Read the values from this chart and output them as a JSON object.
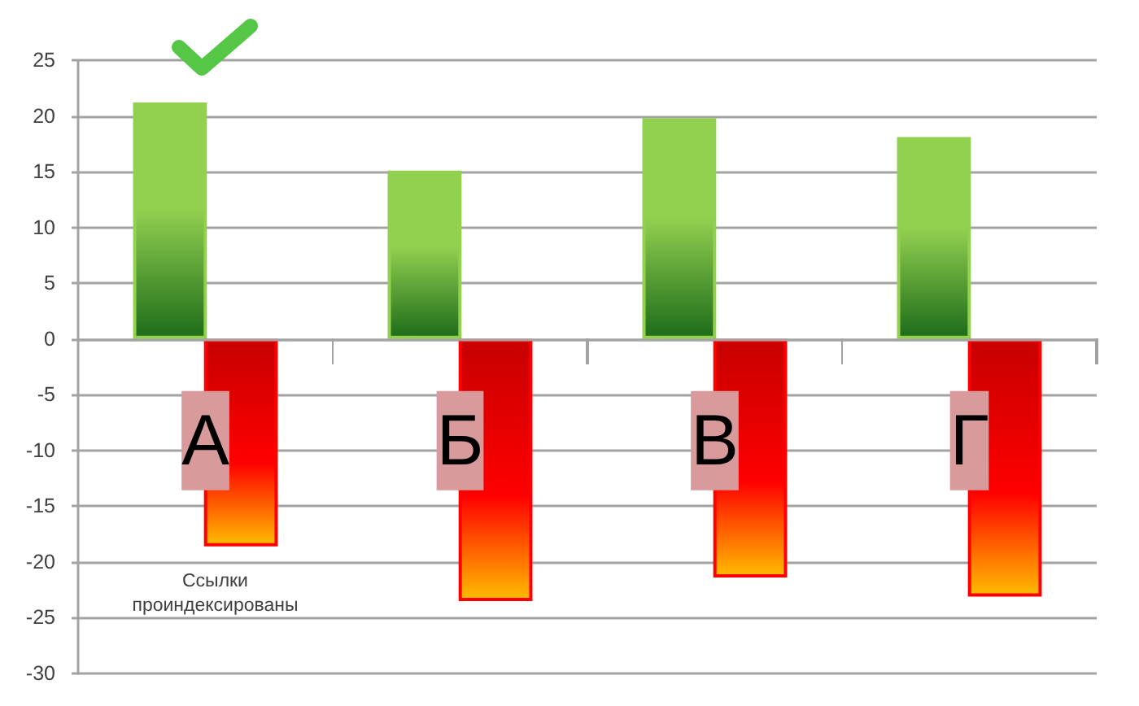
{
  "chart_data": {
    "type": "bar",
    "categories": [
      "А",
      "Б",
      "В",
      "Г"
    ],
    "series": [
      {
        "color": "#92d050",
        "values": [
          21.2,
          15.1,
          19.8,
          18.1
        ]
      },
      {
        "color": "#ff0000",
        "values": [
          -18.6,
          -23.5,
          -21.4,
          -23.1
        ]
      }
    ],
    "ylim": [
      -30,
      25
    ],
    "yticks": [
      -30,
      -25,
      -20,
      -15,
      -10,
      -5,
      0,
      5,
      10,
      15,
      20,
      25
    ],
    "grid": "y",
    "annotations": [
      {
        "text": "Ссылки проиндексированы",
        "x": "А",
        "y": -18.6
      }
    ]
  }
}
